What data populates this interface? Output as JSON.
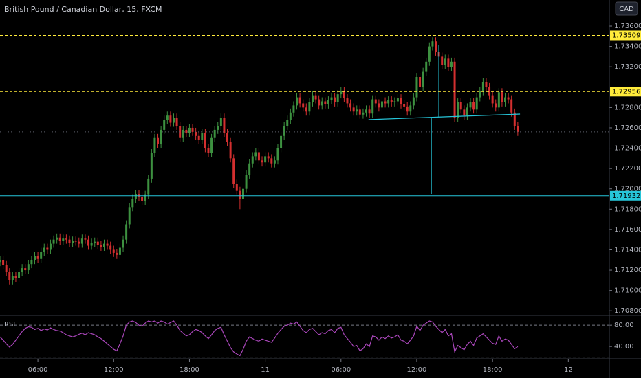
{
  "ui": {
    "currency": "CAD"
  },
  "chart_data": [
    {
      "type": "candlestick",
      "title": "British Pound / Canadian Dollar, 15, FXCM",
      "up_color": "#3d9140",
      "down_color": "#d32f2f",
      "xlim": [
        0,
        193
      ],
      "ylim": [
        1.70761,
        1.73857
      ],
      "xticks": [
        {
          "value": 12,
          "label": "06:00"
        },
        {
          "value": 36,
          "label": "12:00"
        },
        {
          "value": 60,
          "label": "18:00"
        },
        {
          "value": 84,
          "label": "11"
        },
        {
          "value": 108,
          "label": "06:00"
        },
        {
          "value": 132,
          "label": "12:00"
        },
        {
          "value": 156,
          "label": "18:00"
        },
        {
          "value": 180,
          "label": "12"
        }
      ],
      "yticks": [
        {
          "value": 1.736,
          "label": "1.73600"
        },
        {
          "value": 1.734,
          "label": "1.73400"
        },
        {
          "value": 1.732,
          "label": "1.73200"
        },
        {
          "value": 1.728,
          "label": "1.72800"
        },
        {
          "value": 1.726,
          "label": "1.72600"
        },
        {
          "value": 1.724,
          "label": "1.72400"
        },
        {
          "value": 1.722,
          "label": "1.72200"
        },
        {
          "value": 1.72,
          "label": "1.72000"
        },
        {
          "value": 1.718,
          "label": "1.71800"
        },
        {
          "value": 1.716,
          "label": "1.71600"
        },
        {
          "value": 1.714,
          "label": "1.71400"
        },
        {
          "value": 1.712,
          "label": "1.71200"
        },
        {
          "value": 1.71,
          "label": "1.71000"
        },
        {
          "value": 1.708,
          "label": "1.70800"
        }
      ],
      "hlines": [
        {
          "value": 1.73509,
          "color": "#ffeb3b",
          "dashed": true
        },
        {
          "value": 1.72956,
          "color": "#ffeb3b",
          "dashed": true
        },
        {
          "value": 1.71932,
          "color": "#26c6da",
          "dashed": false
        }
      ],
      "drawings": {
        "color": "#26c6da",
        "lines": [
          {
            "x": [
              116.7,
              164.7
            ],
            "y": [
              1.72681,
              1.72735
            ]
          },
          {
            "x": [
              139,
              139
            ],
            "y": [
              1.73417,
              1.72708
            ]
          },
          {
            "x": [
              136.6,
              136.6
            ],
            "y": [
              1.72694,
              1.71944
            ]
          }
        ]
      },
      "open": [
        1.7128,
        1.713,
        1.7125,
        1.7118,
        1.711,
        1.7114,
        1.7112,
        1.7118,
        1.7122,
        1.712,
        1.7126,
        1.713,
        1.7134,
        1.7131,
        1.7138,
        1.7142,
        1.714,
        1.7146,
        1.715,
        1.7152,
        1.7149,
        1.7151,
        1.715,
        1.7147,
        1.7149,
        1.7148,
        1.7146,
        1.7151,
        1.715,
        1.7144,
        1.7147,
        1.7148,
        1.7145,
        1.7143,
        1.7146,
        1.7144,
        1.714,
        1.7137,
        1.7135,
        1.7142,
        1.715,
        1.7165,
        1.7182,
        1.719,
        1.7195,
        1.7192,
        1.7188,
        1.7194,
        1.721,
        1.7235,
        1.725,
        1.7244,
        1.7258,
        1.7268,
        1.7272,
        1.7265,
        1.727,
        1.7262,
        1.725,
        1.7258,
        1.7255,
        1.726,
        1.7256,
        1.7252,
        1.7248,
        1.7255,
        1.724,
        1.7235,
        1.725,
        1.7258,
        1.7262,
        1.727,
        1.7255,
        1.7246,
        1.723,
        1.7205,
        1.7198,
        1.719,
        1.72,
        1.7214,
        1.7225,
        1.7232,
        1.7236,
        1.7228,
        1.7226,
        1.7232,
        1.723,
        1.7225,
        1.7228,
        1.724,
        1.7252,
        1.7262,
        1.7268,
        1.7275,
        1.7282,
        1.729,
        1.7284,
        1.728,
        1.7276,
        1.7285,
        1.7292,
        1.7288,
        1.7282,
        1.7286,
        1.7283,
        1.7287,
        1.729,
        1.7285,
        1.7293,
        1.7296,
        1.7289,
        1.7284,
        1.728,
        1.7276,
        1.7278,
        1.7273,
        1.7275,
        1.7278,
        1.7274,
        1.7288,
        1.7284,
        1.728,
        1.7286,
        1.7284,
        1.7287,
        1.7285,
        1.7286,
        1.7289,
        1.7283,
        1.7281,
        1.7276,
        1.7282,
        1.729,
        1.731,
        1.73,
        1.7315,
        1.7325,
        1.734,
        1.7345,
        1.7335,
        1.733,
        1.7322,
        1.7328,
        1.732,
        1.7325,
        1.727,
        1.7285,
        1.7278,
        1.7272,
        1.728,
        1.7285,
        1.7278,
        1.729,
        1.7296,
        1.7305,
        1.73,
        1.7292,
        1.7284,
        1.728,
        1.7295,
        1.7285,
        1.729,
        1.7288,
        1.7275,
        1.7262
      ],
      "high": [
        1.7134,
        1.7134,
        1.7129,
        1.7122,
        1.7118,
        1.7118,
        1.7122,
        1.7126,
        1.7126,
        1.713,
        1.7134,
        1.7138,
        1.7138,
        1.7142,
        1.7146,
        1.7146,
        1.715,
        1.7154,
        1.7156,
        1.7156,
        1.7155,
        1.7155,
        1.7154,
        1.7153,
        1.7153,
        1.7152,
        1.7155,
        1.7155,
        1.7154,
        1.7151,
        1.7152,
        1.7152,
        1.7149,
        1.715,
        1.715,
        1.7148,
        1.7144,
        1.7141,
        1.7146,
        1.7154,
        1.7169,
        1.7186,
        1.7194,
        1.7199,
        1.7199,
        1.7196,
        1.7198,
        1.7214,
        1.7239,
        1.7254,
        1.7254,
        1.7262,
        1.7272,
        1.7276,
        1.7276,
        1.7274,
        1.7274,
        1.7266,
        1.7262,
        1.7262,
        1.7264,
        1.7264,
        1.726,
        1.7256,
        1.7259,
        1.7259,
        1.7244,
        1.7254,
        1.7262,
        1.7266,
        1.7274,
        1.7274,
        1.7259,
        1.725,
        1.7234,
        1.7209,
        1.7202,
        1.7204,
        1.7218,
        1.7229,
        1.7236,
        1.724,
        1.724,
        1.7232,
        1.7236,
        1.7236,
        1.7234,
        1.7232,
        1.7244,
        1.7256,
        1.7266,
        1.7272,
        1.7279,
        1.7286,
        1.7294,
        1.7294,
        1.7288,
        1.7284,
        1.7289,
        1.7296,
        1.7296,
        1.7292,
        1.729,
        1.729,
        1.7291,
        1.7294,
        1.7294,
        1.7297,
        1.73,
        1.73,
        1.7293,
        1.7288,
        1.7284,
        1.7282,
        1.7282,
        1.7279,
        1.7282,
        1.7282,
        1.7292,
        1.7292,
        1.7288,
        1.729,
        1.729,
        1.7291,
        1.7291,
        1.729,
        1.7293,
        1.7293,
        1.7287,
        1.7285,
        1.7286,
        1.7294,
        1.7314,
        1.7314,
        1.7319,
        1.7329,
        1.7344,
        1.7349,
        1.7349,
        1.7339,
        1.7334,
        1.7332,
        1.7332,
        1.7329,
        1.7329,
        1.7289,
        1.7289,
        1.7282,
        1.7284,
        1.7289,
        1.7289,
        1.7294,
        1.73,
        1.7309,
        1.7309,
        1.7304,
        1.7296,
        1.7288,
        1.7299,
        1.7299,
        1.7294,
        1.7294,
        1.7292,
        1.7279,
        1.7266
      ],
      "low": [
        1.7124,
        1.7121,
        1.7114,
        1.7106,
        1.7106,
        1.7108,
        1.7108,
        1.7114,
        1.7116,
        1.7116,
        1.7122,
        1.7126,
        1.7127,
        1.7127,
        1.7134,
        1.7136,
        1.7136,
        1.7142,
        1.7146,
        1.7145,
        1.7145,
        1.7146,
        1.7143,
        1.7143,
        1.7144,
        1.7142,
        1.7142,
        1.7146,
        1.714,
        1.714,
        1.7143,
        1.7141,
        1.7139,
        1.7139,
        1.714,
        1.7136,
        1.7133,
        1.7131,
        1.7131,
        1.7138,
        1.7146,
        1.7161,
        1.7178,
        1.7186,
        1.7188,
        1.7184,
        1.7184,
        1.719,
        1.7206,
        1.7231,
        1.724,
        1.724,
        1.7254,
        1.7264,
        1.7261,
        1.7261,
        1.7258,
        1.7246,
        1.7246,
        1.7251,
        1.7251,
        1.7252,
        1.7248,
        1.7244,
        1.7244,
        1.7236,
        1.7231,
        1.7231,
        1.7246,
        1.7254,
        1.7258,
        1.7251,
        1.7242,
        1.7226,
        1.7201,
        1.7194,
        1.718,
        1.7186,
        1.7196,
        1.721,
        1.7221,
        1.7228,
        1.7224,
        1.7222,
        1.7222,
        1.7226,
        1.7221,
        1.7221,
        1.7224,
        1.7236,
        1.7248,
        1.7258,
        1.7264,
        1.7271,
        1.7278,
        1.728,
        1.7276,
        1.7272,
        1.7272,
        1.7281,
        1.7284,
        1.7278,
        1.7278,
        1.7279,
        1.7279,
        1.7283,
        1.7281,
        1.7281,
        1.7289,
        1.7285,
        1.728,
        1.7276,
        1.7272,
        1.7272,
        1.7269,
        1.7269,
        1.7271,
        1.727,
        1.727,
        1.728,
        1.7276,
        1.7276,
        1.728,
        1.728,
        1.7281,
        1.7281,
        1.7282,
        1.7279,
        1.7277,
        1.7272,
        1.7272,
        1.7278,
        1.7286,
        1.7296,
        1.7296,
        1.7311,
        1.7321,
        1.7336,
        1.7331,
        1.7326,
        1.7318,
        1.7318,
        1.7316,
        1.7316,
        1.7266,
        1.7266,
        1.7274,
        1.7268,
        1.7268,
        1.7276,
        1.7274,
        1.7274,
        1.7286,
        1.7292,
        1.7296,
        1.7288,
        1.728,
        1.7276,
        1.7276,
        1.7281,
        1.7281,
        1.7284,
        1.7271,
        1.7258,
        1.7252
      ],
      "close": [
        1.713,
        1.7125,
        1.7118,
        1.711,
        1.7114,
        1.7112,
        1.7118,
        1.7122,
        1.712,
        1.7126,
        1.713,
        1.7134,
        1.7131,
        1.7138,
        1.7142,
        1.714,
        1.7146,
        1.715,
        1.7152,
        1.7149,
        1.7151,
        1.715,
        1.7147,
        1.7149,
        1.7148,
        1.7146,
        1.7151,
        1.715,
        1.7144,
        1.7147,
        1.7148,
        1.7145,
        1.7143,
        1.7146,
        1.7144,
        1.714,
        1.7137,
        1.7135,
        1.7142,
        1.715,
        1.7165,
        1.7182,
        1.719,
        1.7195,
        1.7192,
        1.7188,
        1.7194,
        1.721,
        1.7235,
        1.725,
        1.7244,
        1.7258,
        1.7268,
        1.7272,
        1.7265,
        1.727,
        1.7262,
        1.725,
        1.7258,
        1.7255,
        1.726,
        1.7256,
        1.7252,
        1.7248,
        1.7255,
        1.724,
        1.7235,
        1.725,
        1.7258,
        1.7262,
        1.727,
        1.7255,
        1.7246,
        1.723,
        1.7205,
        1.7198,
        1.719,
        1.72,
        1.7214,
        1.7225,
        1.7232,
        1.7236,
        1.7228,
        1.7226,
        1.7232,
        1.723,
        1.7225,
        1.7228,
        1.724,
        1.7252,
        1.7262,
        1.7268,
        1.7275,
        1.7282,
        1.729,
        1.7284,
        1.728,
        1.7276,
        1.7285,
        1.7292,
        1.7288,
        1.7282,
        1.7286,
        1.7283,
        1.7287,
        1.729,
        1.7285,
        1.7293,
        1.7296,
        1.7289,
        1.7284,
        1.728,
        1.7276,
        1.7278,
        1.7273,
        1.7275,
        1.7278,
        1.7274,
        1.7288,
        1.7284,
        1.728,
        1.7286,
        1.7284,
        1.7287,
        1.7285,
        1.7286,
        1.7289,
        1.7283,
        1.7281,
        1.7276,
        1.7282,
        1.729,
        1.731,
        1.73,
        1.7315,
        1.7325,
        1.734,
        1.7345,
        1.7335,
        1.733,
        1.7322,
        1.7328,
        1.732,
        1.7325,
        1.727,
        1.7285,
        1.7278,
        1.7272,
        1.728,
        1.7285,
        1.7278,
        1.729,
        1.7296,
        1.7305,
        1.73,
        1.7292,
        1.7284,
        1.728,
        1.7295,
        1.7285,
        1.729,
        1.7288,
        1.7275,
        1.7262,
        1.7256
      ]
    },
    {
      "type": "line",
      "title": "RSI",
      "color": "#ab47bc",
      "xlim": [
        0,
        193
      ],
      "ylim": [
        17,
        97
      ],
      "yticks": [
        {
          "value": 80,
          "label": "80.00"
        },
        {
          "value": 40,
          "label": "40.00"
        }
      ],
      "bands": [
        80,
        20
      ],
      "values": [
        58,
        52,
        45,
        39,
        44,
        52,
        60,
        68,
        74,
        77,
        76,
        72,
        74,
        70,
        73,
        71,
        75,
        72,
        70,
        69,
        66,
        62,
        60,
        58,
        60,
        63,
        65,
        62,
        66,
        64,
        62,
        58,
        55,
        50,
        45,
        40,
        35,
        32,
        45,
        60,
        80,
        86,
        88,
        85,
        80,
        78,
        84,
        88,
        86,
        88,
        84,
        88,
        86,
        82,
        85,
        88,
        80,
        70,
        65,
        60,
        62,
        68,
        72,
        70,
        66,
        60,
        55,
        62,
        70,
        74,
        76,
        62,
        50,
        38,
        30,
        26,
        23,
        35,
        50,
        58,
        55,
        52,
        50,
        54,
        52,
        50,
        48,
        56,
        65,
        72,
        78,
        80,
        84,
        82,
        86,
        78,
        70,
        66,
        72,
        74,
        68,
        62,
        66,
        64,
        70,
        72,
        66,
        74,
        76,
        62,
        55,
        48,
        40,
        42,
        32,
        36,
        45,
        40,
        60,
        58,
        52,
        58,
        55,
        60,
        56,
        58,
        62,
        52,
        50,
        45,
        52,
        60,
        78,
        70,
        80,
        84,
        88,
        86,
        78,
        72,
        66,
        72,
        60,
        64,
        30,
        42,
        38,
        34,
        44,
        50,
        42,
        56,
        60,
        64,
        58,
        52,
        46,
        44,
        60,
        50,
        54,
        52,
        44,
        36,
        40
      ]
    }
  ]
}
